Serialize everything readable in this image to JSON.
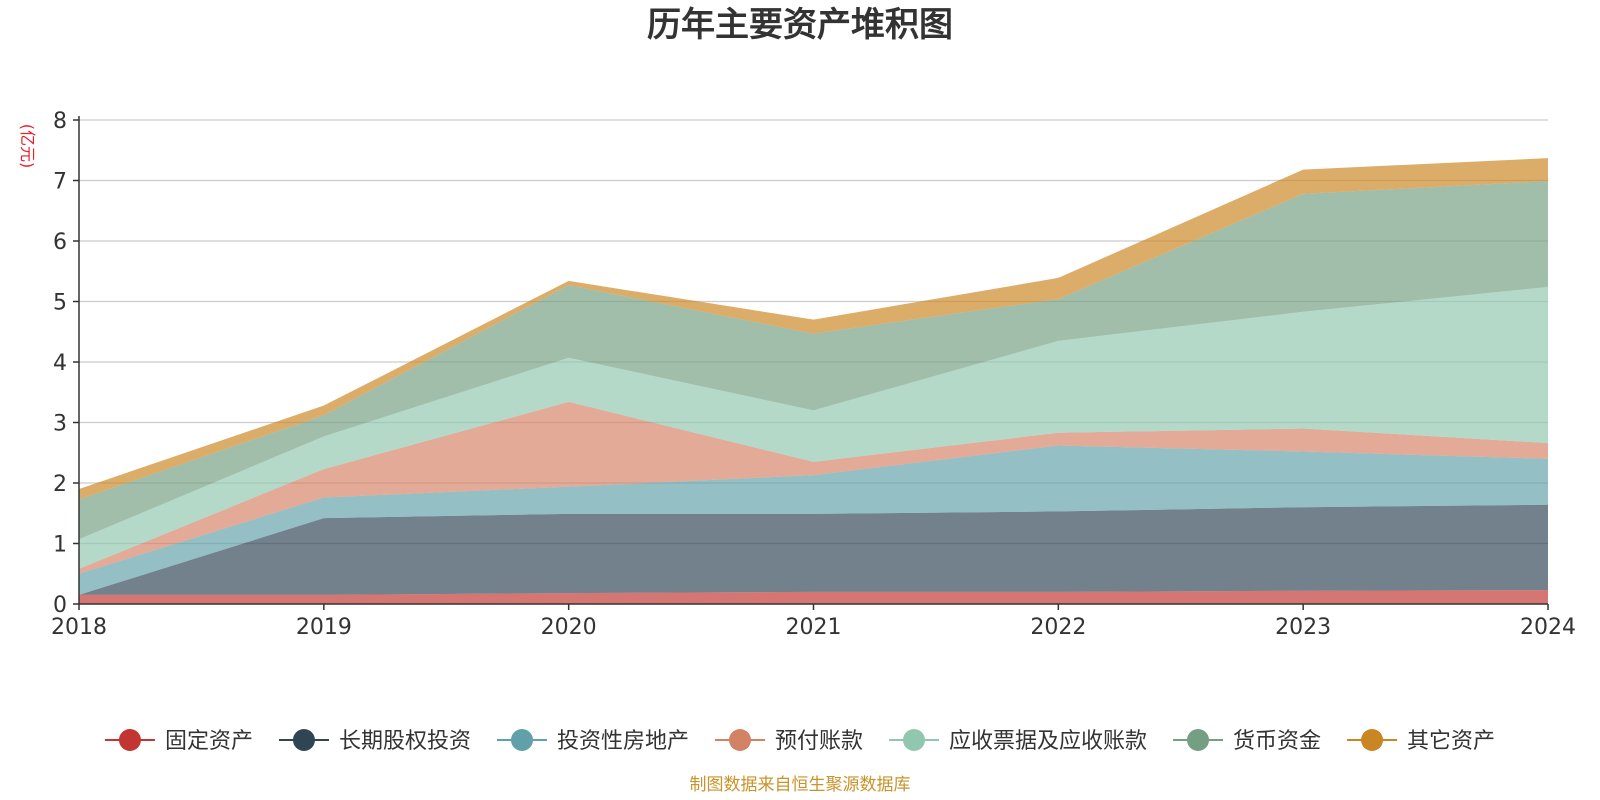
{
  "chart_data": {
    "type": "area",
    "stacked": true,
    "title": "历年主要资产堆积图",
    "unit_label": "(亿元)",
    "source": "制图数据来自恒生聚源数据库",
    "categories": [
      "2018",
      "2019",
      "2020",
      "2021",
      "2022",
      "2023",
      "2024"
    ],
    "y_ticks": [
      "0",
      "1",
      "2",
      "3",
      "4",
      "5",
      "6",
      "7",
      "8"
    ],
    "ylim": [
      0,
      8
    ],
    "grid": true,
    "legend_position": "bottom",
    "series": [
      {
        "name": "固定资产",
        "color": "#c23531",
        "values": [
          0.15,
          0.15,
          0.18,
          0.2,
          0.2,
          0.22,
          0.23
        ]
      },
      {
        "name": "长期股权投资",
        "color": "#2f4554",
        "values": [
          0.0,
          1.27,
          1.31,
          1.29,
          1.33,
          1.38,
          1.41
        ]
      },
      {
        "name": "投资性房地产",
        "color": "#61a0a8",
        "values": [
          0.35,
          0.34,
          0.45,
          0.64,
          1.09,
          0.92,
          0.76
        ]
      },
      {
        "name": "预付账款",
        "color": "#d48265",
        "values": [
          0.08,
          0.47,
          1.4,
          0.22,
          0.21,
          0.38,
          0.26
        ]
      },
      {
        "name": "应收票据及应收账款",
        "color": "#91c7ae",
        "values": [
          0.49,
          0.54,
          0.73,
          0.85,
          1.52,
          1.93,
          2.58
        ]
      },
      {
        "name": "货币资金",
        "color": "#749f83",
        "values": [
          0.66,
          0.35,
          1.2,
          1.27,
          0.69,
          1.95,
          1.75
        ]
      },
      {
        "name": "其它资产",
        "color": "#ca8622",
        "values": [
          0.17,
          0.16,
          0.07,
          0.23,
          0.35,
          0.4,
          0.38
        ]
      }
    ]
  }
}
